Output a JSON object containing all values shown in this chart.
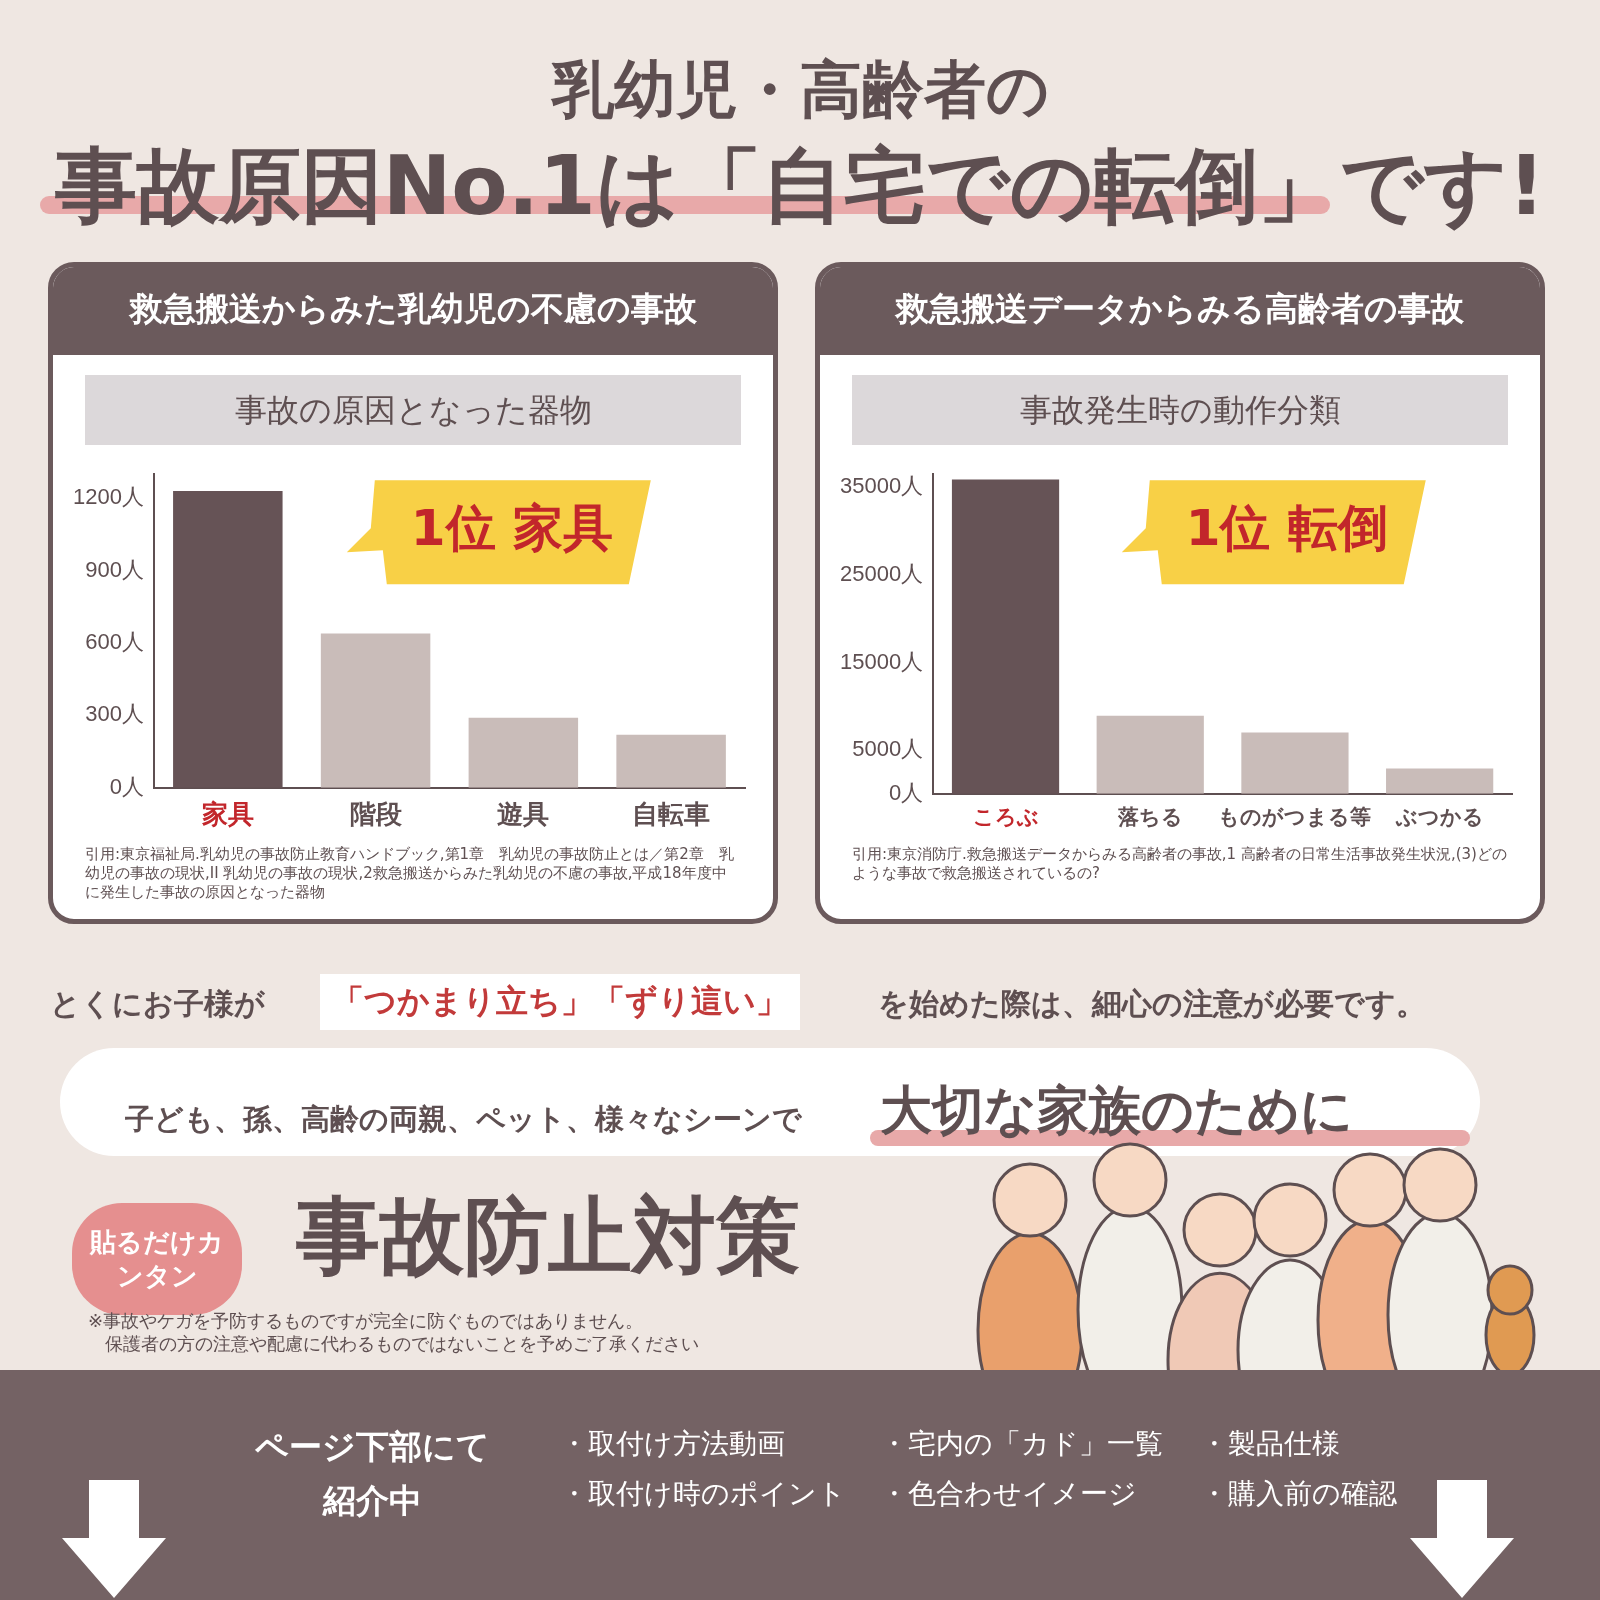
{
  "chart_data": [
    {
      "type": "other",
      "title": "乳幼児・高齢者の",
      "subtitle": "事故原因No.1は「自宅での転倒」です!"
    },
    {
      "type": "bar",
      "title": "救急搬送からみた乳幼児の不慮の事故",
      "subtitle": "事故の原因となった器物",
      "categories": [
        "家具",
        "階段",
        "遊具",
        "自転車"
      ],
      "values": [
        1230,
        640,
        290,
        220
      ],
      "colors": [
        "#665356",
        "#c9bcb9",
        "#c9bcb9",
        "#c9bcb9"
      ],
      "ylim": [
        0,
        1300
      ],
      "yticks": [
        {
          "value": 0,
          "label": "0人"
        },
        {
          "value": 300,
          "label": "300人"
        },
        {
          "value": 600,
          "label": "600人"
        },
        {
          "value": 900,
          "label": "900人"
        },
        {
          "value": 1200,
          "label": "1200人"
        }
      ],
      "grid": false,
      "legend": false,
      "annotations": [
        "1位 家具",
        "引用:東京福祉局.乳幼児の事故防止教育ハンドブック,第1章　乳幼児の事故防止とは／第2章　乳幼児の事故の現状,II 乳幼児の事故の現状,2救急搬送からみた乳幼児の不慮の事故,平成18年度中に発生した事故の原因となった器物"
      ]
    },
    {
      "type": "bar",
      "title": "救急搬送データからみる高齢者の事故",
      "subtitle": "事故発生時の動作分類",
      "categories": [
        "ころぶ",
        "落ちる",
        "ものがつまる等",
        "ぶつかる"
      ],
      "values": [
        35900,
        8900,
        7000,
        2900
      ],
      "colors": [
        "#665356",
        "#c9bcb9",
        "#c9bcb9",
        "#c9bcb9"
      ],
      "ylim": [
        0,
        36500
      ],
      "yticks": [
        {
          "value": 0,
          "label": "0人"
        },
        {
          "value": 5000,
          "label": "5000人"
        },
        {
          "value": 15000,
          "label": "15000人"
        },
        {
          "value": 25000,
          "label": "25000人"
        },
        {
          "value": 35000,
          "label": "35000人"
        }
      ],
      "grid": false,
      "legend": false,
      "annotations": [
        "1位 転倒",
        "引用:東京消防庁.救急搬送データからみる高齢者の事故,1 高齢者の日常生活事故発生状況,(3)どのような事故で救急搬送されているの?"
      ]
    },
    {
      "type": "other",
      "annotations": [
        "とくにお子様が",
        "「つかまり立ち」「ずり這い」",
        "を始めた際は、細心の注意が必要です。",
        "子ども、孫、高齢の両親、ペット、様々なシーンで",
        "大切な家族のために",
        "貼るだけカンタン",
        "事故防止対策",
        "※事故やケガを予防するものですが完全に防ぐものではありません。",
        "保護者の方の注意や配慮に代わるものではないことを予めご了承ください",
        "ページ下部にて紹介中",
        "・取付け方法動画",
        "・宅内の「カド」一覧",
        "・製品仕様",
        "・取付け時のポイント",
        "・色合わせイメージ",
        "・購入前の確認"
      ]
    }
  ]
}
